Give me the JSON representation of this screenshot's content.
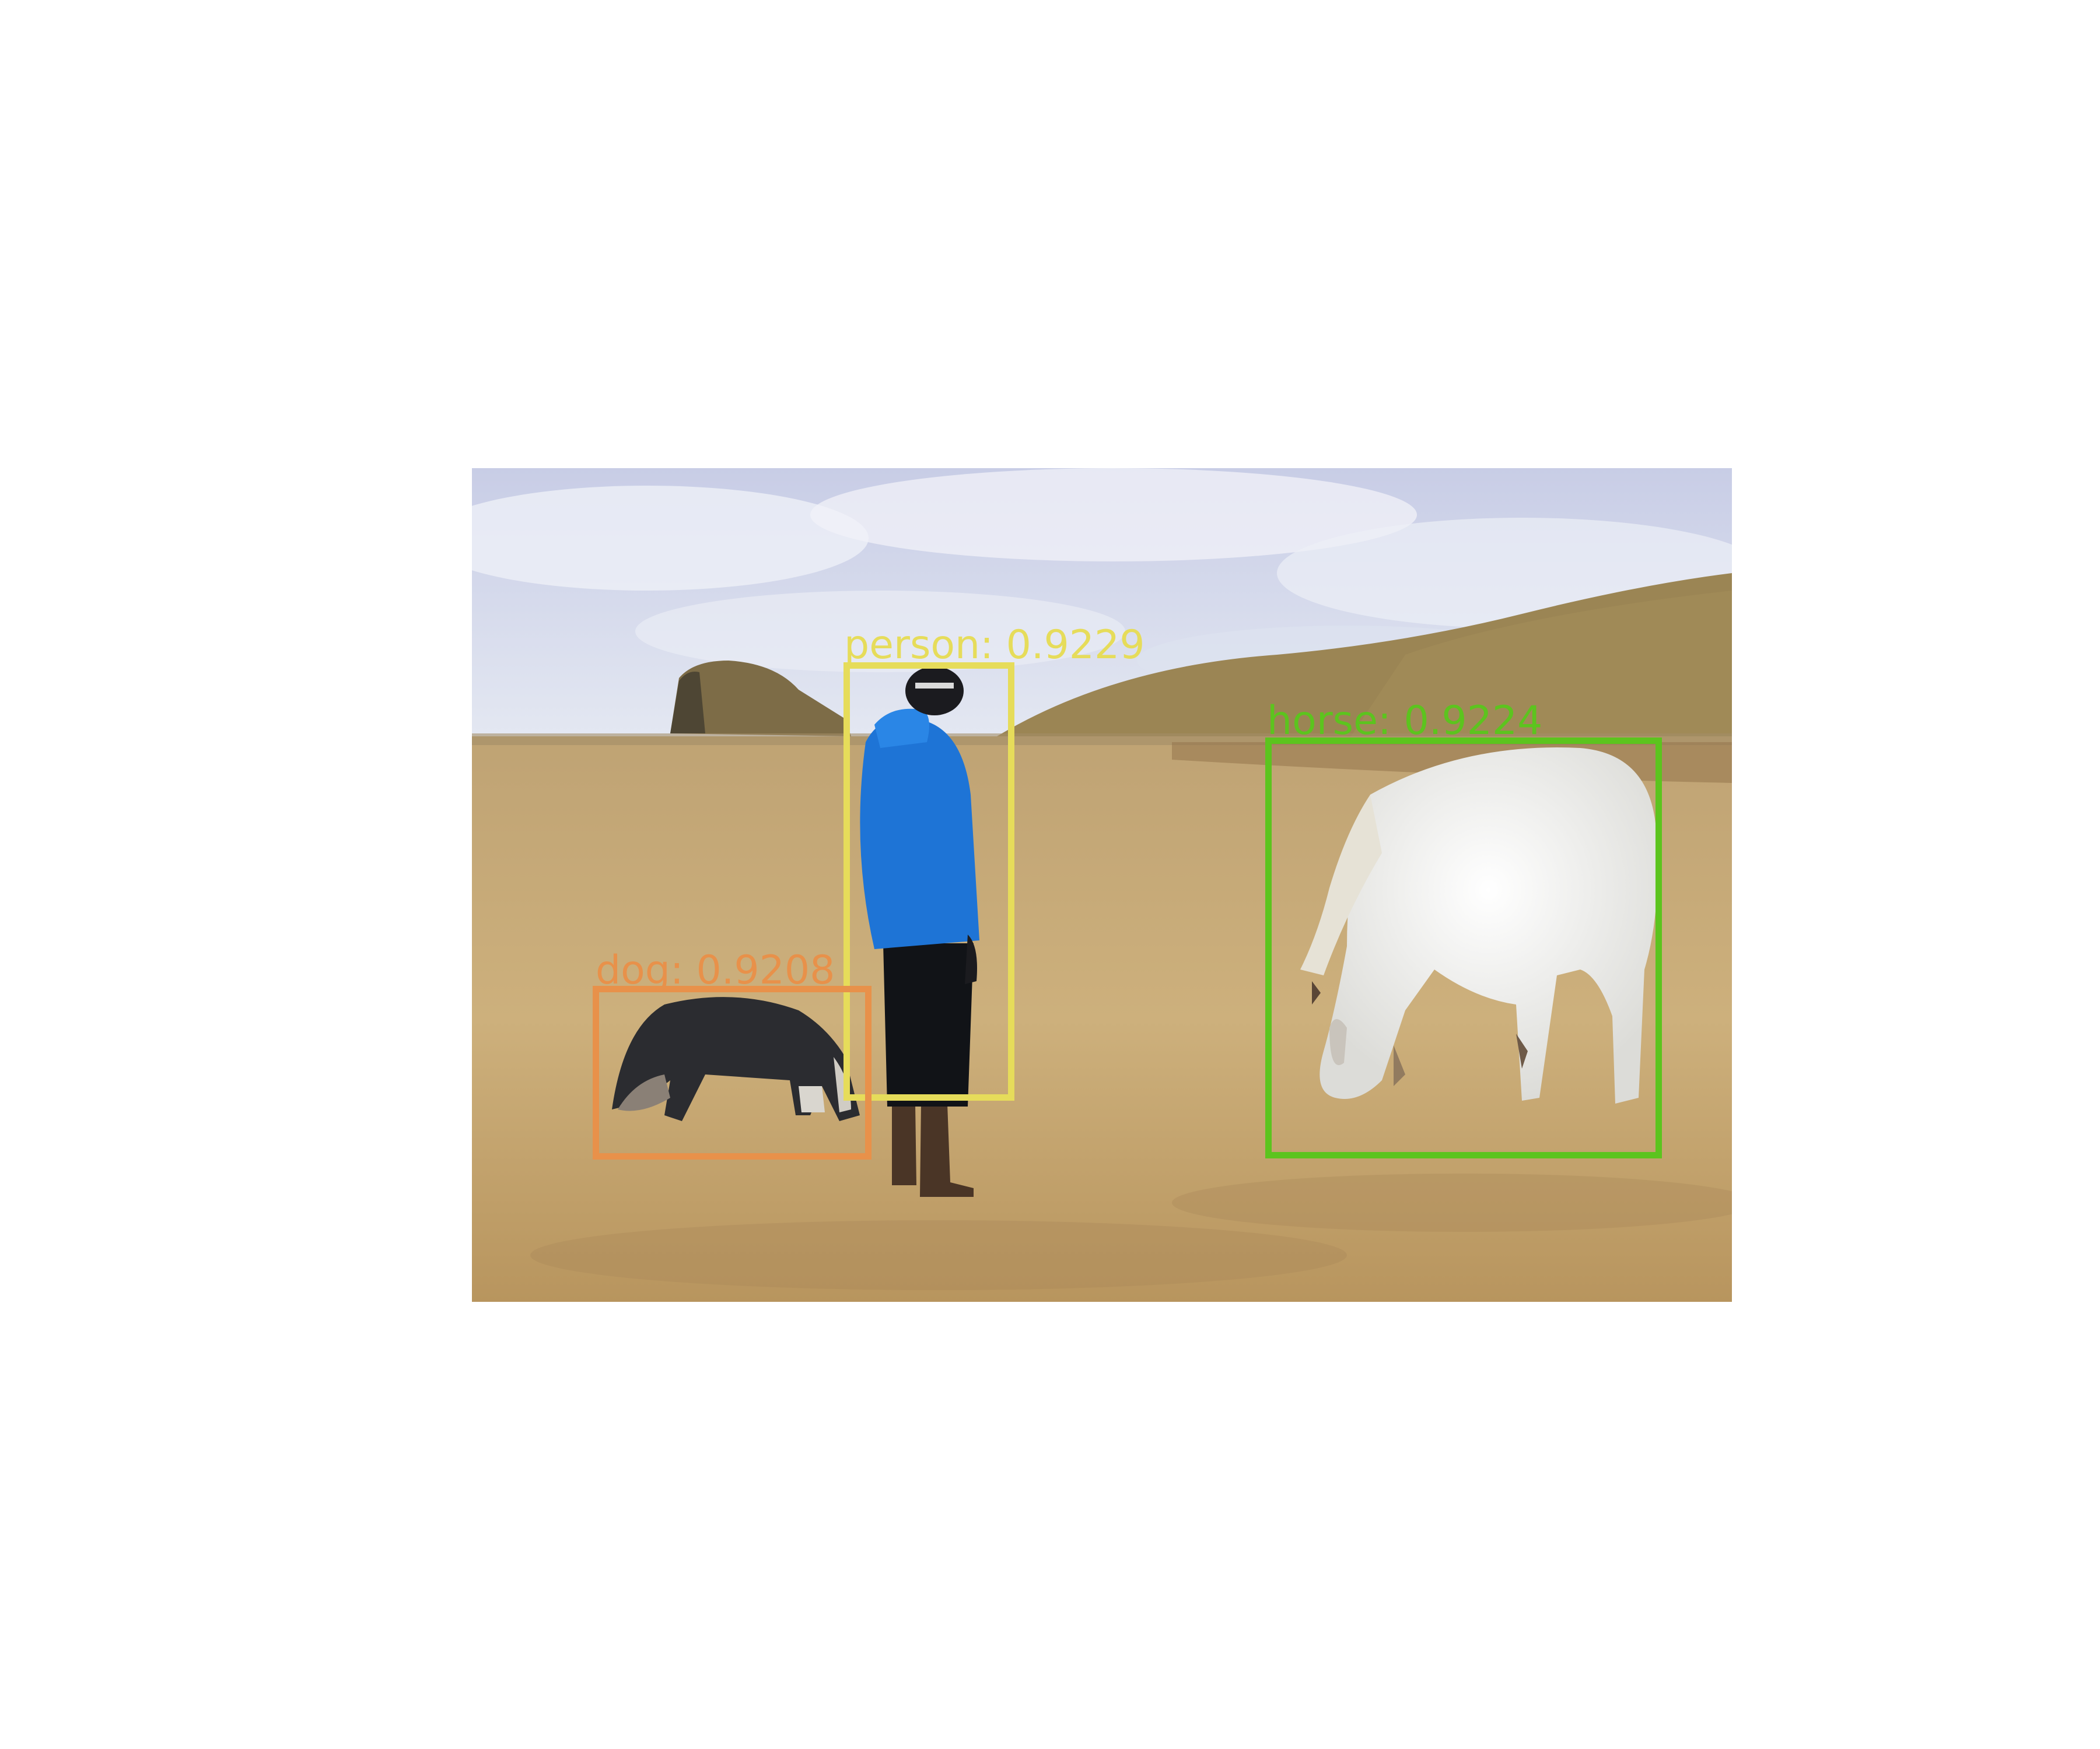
{
  "detections": [
    {
      "label": "person: 0.9229",
      "color": "#e6dc5a"
    },
    {
      "label": "horse: 0.9224",
      "color": "#5cc41e"
    },
    {
      "label": "dog: 0.9208",
      "color": "#e8914a"
    }
  ],
  "palette": {
    "sky": "#d9deef",
    "cloud": "#eef0f7",
    "hill": "#9a8152",
    "field": "#c9ad78",
    "jacket": "#1e74d6",
    "horse": "#efefed",
    "dog": "#2b2c30"
  }
}
